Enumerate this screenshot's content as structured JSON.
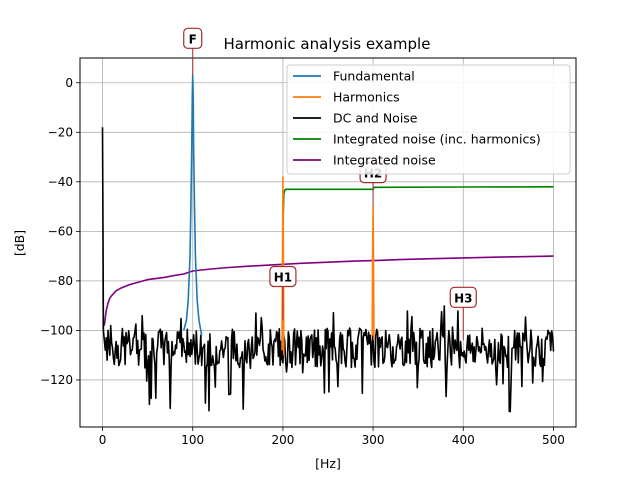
{
  "chart_data": {
    "type": "line",
    "title": "Harmonic analysis example",
    "xlabel": "[Hz]",
    "ylabel": "[dB]",
    "xlim": [
      -25,
      525
    ],
    "ylim": [
      -139,
      10
    ],
    "xticks": [
      0,
      100,
      200,
      300,
      400,
      500
    ],
    "yticks": [
      0,
      -20,
      -40,
      -60,
      -80,
      -100,
      -120
    ],
    "grid": true,
    "legend_position": "top-right",
    "colors": {
      "fundamental": "#1f77b4",
      "harmonics": "#ff7f0e",
      "noise": "#000000",
      "integrated_with_harmonics": "#008000",
      "integrated_noise": "#800080",
      "annotation_border": "#a52a2a"
    },
    "annotations": [
      {
        "label": "F",
        "x": 100,
        "y": 3
      },
      {
        "label": "H1",
        "x": 200,
        "y": -96
      },
      {
        "label": "H2",
        "x": 300,
        "y": -50
      },
      {
        "label": "H3",
        "x": 400,
        "y": -104
      }
    ],
    "series": [
      {
        "name": "Fundamental",
        "color": "#1f77b4",
        "x": [
          90,
          93,
          95,
          97,
          98,
          99,
          99.5,
          100,
          100.5,
          101,
          102,
          103,
          105,
          107,
          110
        ],
        "y": [
          -100,
          -96,
          -88,
          -70,
          -50,
          -25,
          -5,
          3,
          -5,
          -25,
          -50,
          -70,
          -88,
          -96,
          -102
        ]
      },
      {
        "name": "Harmonics",
        "color": "#ff7f0e",
        "x": [
          199,
          199.5,
          200,
          200.5,
          201,
          299,
          299.5,
          300,
          300.5,
          301
        ],
        "y": [
          -108,
          -70,
          -38,
          -70,
          -110,
          -102,
          -70,
          -50,
          -70,
          -104
        ]
      },
      {
        "name": "DC and Noise",
        "color": "#000000",
        "x": [
          0,
          0.5,
          1,
          2,
          3,
          4,
          5,
          6,
          7,
          8,
          9,
          10
        ],
        "y": [
          -18,
          -60,
          -100,
          -104,
          -108,
          -103,
          -112,
          -100,
          -106,
          -110,
          -98,
          -105
        ]
      },
      {
        "name": "Integrated noise (inc. harmonics)",
        "color": "#008000",
        "x": [
          199.5,
          200,
          201,
          202,
          203,
          300,
          301,
          400,
          500
        ],
        "y": [
          -96,
          -60,
          -45,
          -43.5,
          -43,
          -43,
          -42.2,
          -42.1,
          -42
        ]
      },
      {
        "name": "Integrated noise",
        "color": "#800080",
        "x": [
          2,
          4,
          6,
          8,
          10,
          15,
          20,
          30,
          40,
          50,
          60,
          70,
          80,
          90,
          95,
          100,
          110,
          120,
          140,
          160,
          180,
          200,
          220,
          240,
          260,
          280,
          300,
          330,
          360,
          400,
          440,
          480,
          500
        ],
        "y": [
          -98,
          -92,
          -89,
          -87,
          -86,
          -84,
          -83,
          -81.5,
          -80.5,
          -79.5,
          -79,
          -78.5,
          -77.8,
          -77.2,
          -76.6,
          -76,
          -75.6,
          -75.2,
          -74.6,
          -74.1,
          -73.7,
          -73.3,
          -72.9,
          -72.6,
          -72.3,
          -72,
          -71.8,
          -71.4,
          -71.1,
          -70.7,
          -70.4,
          -70.1,
          -70
        ]
      }
    ]
  }
}
